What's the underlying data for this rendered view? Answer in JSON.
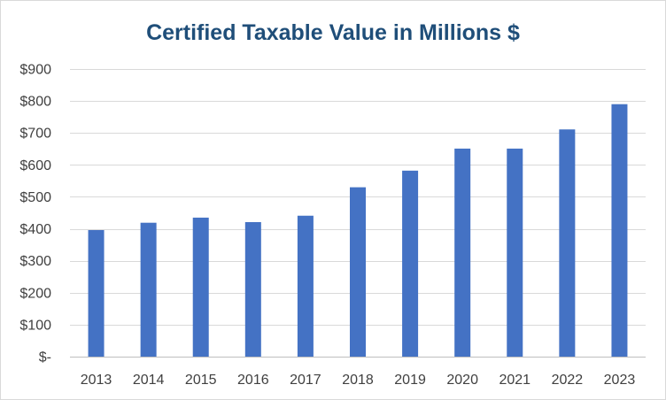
{
  "chart_data": {
    "type": "bar",
    "title": "Certified Taxable Value in Millions $",
    "xlabel": "",
    "ylabel": "",
    "categories": [
      "2013",
      "2014",
      "2015",
      "2016",
      "2017",
      "2018",
      "2019",
      "2020",
      "2021",
      "2022",
      "2023"
    ],
    "series": [
      {
        "values": [
          396,
          419,
          435,
          421,
          441,
          530,
          582,
          651,
          651,
          711,
          790
        ]
      }
    ],
    "ylim": [
      0,
      900
    ],
    "yticks": [
      0,
      100,
      200,
      300,
      400,
      500,
      600,
      700,
      800,
      900
    ],
    "ytick_labels": [
      "$-",
      "$100",
      "$200",
      "$300",
      "$400",
      "$500",
      "$600",
      "$700",
      "$800",
      "$900"
    ],
    "grid": true,
    "legend": "none",
    "bar_color": "#4472c4",
    "title_color": "#1f4e79"
  }
}
